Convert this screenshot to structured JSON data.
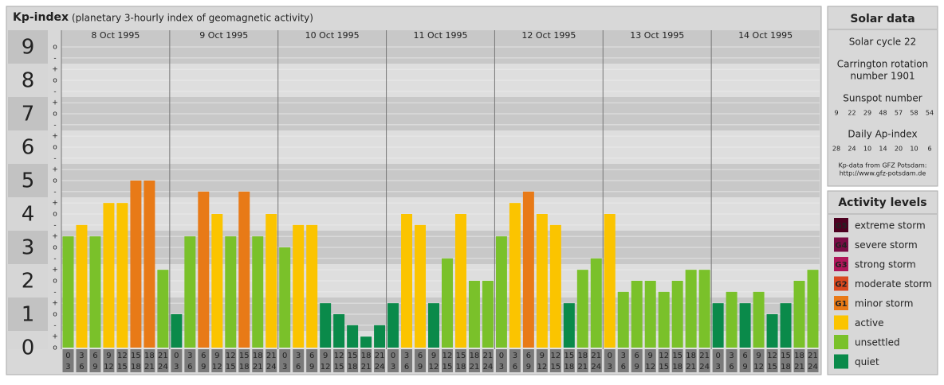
{
  "header": {
    "title": "Kp-index",
    "subtitle": "(planetary 3-hourly index of geomagnetic activity)"
  },
  "chart_data": {
    "type": "bar",
    "ylim": [
      -0.5,
      9.5
    ],
    "yticks": [
      0,
      1,
      2,
      3,
      4,
      5,
      6,
      7,
      8,
      9
    ],
    "minor_yticks": [
      {
        "value": 0,
        "label": "o"
      },
      {
        "value": 0.33,
        "label": "+"
      },
      {
        "value": 0.67,
        "label": "-"
      },
      {
        "value": 1,
        "label": "o"
      },
      {
        "value": 1.33,
        "label": "+"
      },
      {
        "value": 1.67,
        "label": "-"
      },
      {
        "value": 2,
        "label": "o"
      },
      {
        "value": 2.33,
        "label": "+"
      },
      {
        "value": 2.67,
        "label": "-"
      },
      {
        "value": 3,
        "label": "o"
      },
      {
        "value": 3.33,
        "label": "+"
      },
      {
        "value": 3.67,
        "label": "-"
      },
      {
        "value": 4,
        "label": "o"
      },
      {
        "value": 4.33,
        "label": "+"
      },
      {
        "value": 4.67,
        "label": "-"
      },
      {
        "value": 5,
        "label": "o"
      },
      {
        "value": 5.33,
        "label": "+"
      },
      {
        "value": 5.67,
        "label": "-"
      },
      {
        "value": 6,
        "label": "o"
      },
      {
        "value": 6.33,
        "label": "+"
      },
      {
        "value": 6.67,
        "label": "-"
      },
      {
        "value": 7,
        "label": "o"
      },
      {
        "value": 7.33,
        "label": "+"
      },
      {
        "value": 7.67,
        "label": "-"
      },
      {
        "value": 8,
        "label": "o"
      },
      {
        "value": 8.33,
        "label": "+"
      },
      {
        "value": 8.67,
        "label": "-"
      },
      {
        "value": 9,
        "label": "o"
      }
    ],
    "hours": [
      [
        "0",
        "3"
      ],
      [
        "3",
        "6"
      ],
      [
        "6",
        "9"
      ],
      [
        "9",
        "12"
      ],
      [
        "12",
        "15"
      ],
      [
        "15",
        "18"
      ],
      [
        "18",
        "21"
      ],
      [
        "21",
        "24"
      ]
    ],
    "days": [
      {
        "date": "8 Oct 1995",
        "values": [
          3.33,
          3.67,
          3.33,
          4.33,
          4.33,
          5,
          5,
          2.33
        ],
        "colors": [
          "#7ac12a",
          "#fbc400",
          "#7ac12a",
          "#fbc400",
          "#fbc400",
          "#e87a17",
          "#e87a17",
          "#7ac12a"
        ]
      },
      {
        "date": "9 Oct 1995",
        "values": [
          1,
          3.33,
          4.67,
          4,
          3.33,
          4.67,
          3.33,
          4
        ],
        "colors": [
          "#0a8a4a",
          "#7ac12a",
          "#e87a17",
          "#fbc400",
          "#7ac12a",
          "#e87a17",
          "#7ac12a",
          "#fbc400"
        ]
      },
      {
        "date": "10 Oct 1995",
        "values": [
          3,
          3.67,
          3.67,
          1.33,
          1,
          0.67,
          0.33,
          0.67
        ],
        "colors": [
          "#7ac12a",
          "#fbc400",
          "#fbc400",
          "#0a8a4a",
          "#0a8a4a",
          "#0a8a4a",
          "#0a8a4a",
          "#0a8a4a"
        ]
      },
      {
        "date": "11 Oct 1995",
        "values": [
          1.33,
          4,
          3.67,
          1.33,
          2.67,
          4,
          2,
          2
        ],
        "colors": [
          "#0a8a4a",
          "#fbc400",
          "#fbc400",
          "#0a8a4a",
          "#7ac12a",
          "#fbc400",
          "#7ac12a",
          "#7ac12a"
        ]
      },
      {
        "date": "12 Oct 1995",
        "values": [
          3.33,
          4.33,
          4.67,
          4,
          3.67,
          1.33,
          2.33,
          2.67
        ],
        "colors": [
          "#7ac12a",
          "#fbc400",
          "#e87a17",
          "#fbc400",
          "#fbc400",
          "#0a8a4a",
          "#7ac12a",
          "#7ac12a"
        ]
      },
      {
        "date": "13 Oct 1995",
        "values": [
          4,
          1.67,
          2,
          2,
          1.67,
          2,
          2.33,
          2.33
        ],
        "colors": [
          "#fbc400",
          "#7ac12a",
          "#7ac12a",
          "#7ac12a",
          "#7ac12a",
          "#7ac12a",
          "#7ac12a",
          "#7ac12a"
        ]
      },
      {
        "date": "14 Oct 1995",
        "values": [
          1.33,
          1.67,
          1.33,
          1.67,
          1,
          1.33,
          2,
          2.33
        ],
        "colors": [
          "#0a8a4a",
          "#7ac12a",
          "#0a8a4a",
          "#7ac12a",
          "#0a8a4a",
          "#0a8a4a",
          "#7ac12a",
          "#7ac12a"
        ]
      }
    ]
  },
  "solar": {
    "title": "Solar data",
    "cycle": "Solar cycle 22",
    "carrington": [
      "Carrington rotation",
      "number 1901"
    ],
    "sunspot_title": "Sunspot number",
    "sunspot": [
      "9",
      "22",
      "29",
      "48",
      "57",
      "58",
      "54"
    ],
    "ap_title": "Daily Ap-index",
    "ap": [
      "28",
      "24",
      "10",
      "14",
      "20",
      "10",
      "6"
    ],
    "source": [
      "Kp-data from GFZ Potsdam:",
      "http://www.gfz-potsdam.de"
    ]
  },
  "activity": {
    "title": "Activity levels",
    "levels": [
      {
        "badge": "G5",
        "label": "extreme storm",
        "color": "#4d0020"
      },
      {
        "badge": "G4",
        "label": "severe storm",
        "color": "#7a0c45"
      },
      {
        "badge": "G3",
        "label": "strong storm",
        "color": "#b0175a"
      },
      {
        "badge": "G2",
        "label": "moderate storm",
        "color": "#d9481f"
      },
      {
        "badge": "G1",
        "label": "minor storm",
        "color": "#e87a17"
      },
      {
        "badge": null,
        "label": "active",
        "color": "#fbc400"
      },
      {
        "badge": null,
        "label": "unsettled",
        "color": "#7ac12a"
      },
      {
        "badge": null,
        "label": "quiet",
        "color": "#0a8a4a"
      }
    ]
  }
}
